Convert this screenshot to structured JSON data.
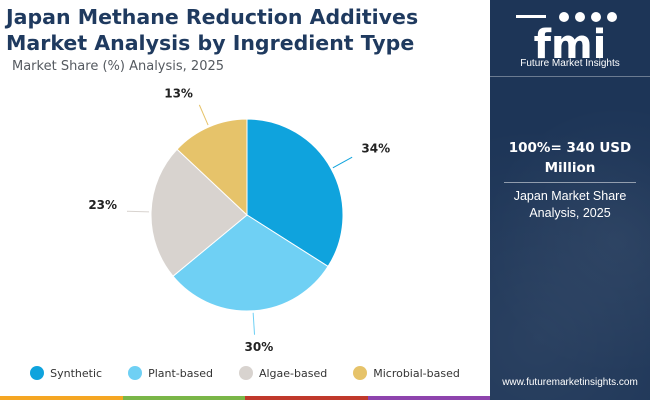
{
  "header": {
    "title": "Japan Methane Reduction Additives Market Analysis by Ingredient Type",
    "subtitle": "Market Share (%) Analysis, 2025"
  },
  "chart_data": {
    "type": "pie",
    "categories": [
      "Synthetic",
      "Plant-based",
      "Algae-based",
      "Microbial-based"
    ],
    "values": [
      34,
      30,
      23,
      13
    ],
    "labels": [
      "34%",
      "30%",
      "23%",
      "13%"
    ],
    "colors": [
      "#0fa3dd",
      "#6fd0f4",
      "#d8d3cf",
      "#e6c36a"
    ],
    "legend_position": "bottom"
  },
  "side_panel": {
    "logo_text": "fmi",
    "logo_caption": "Future Market Insights",
    "total_value": "100%= 340 USD Million",
    "total_caption": "Japan Market Share Analysis, 2025",
    "website": "www.futuremarketinsights.com"
  },
  "colors": {
    "panel_bg": "#1d3557",
    "title": "#1f3a5f",
    "bottom_bar": [
      "#f5a623",
      "#7ab648",
      "#c0392b",
      "#8e44ad"
    ]
  }
}
